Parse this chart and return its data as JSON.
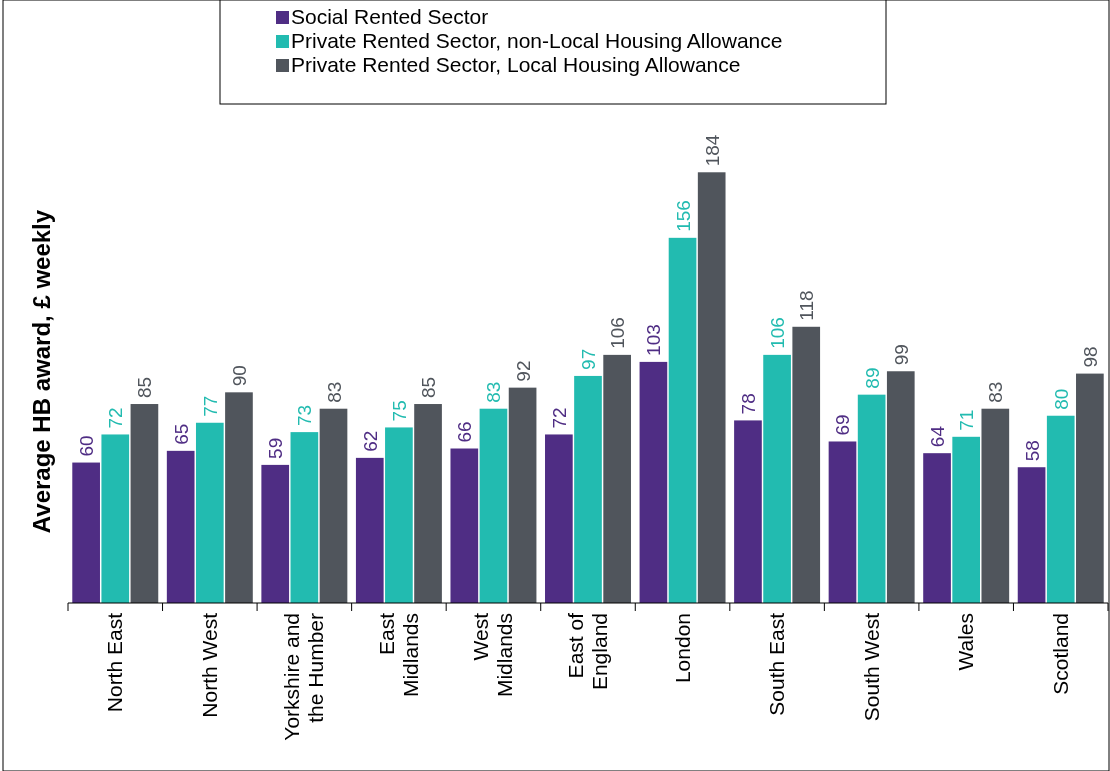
{
  "chart_data": {
    "type": "bar",
    "ylabel": "Average HB award, £ weekly",
    "categories": [
      "North East",
      "North West",
      "Yorkshire and the Humber",
      "East Midlands",
      "West Midlands",
      "East of England",
      "London",
      "South East",
      "South West",
      "Wales",
      "Scotland"
    ],
    "series": [
      {
        "name": "Social Rented Sector",
        "color": "#4f2d84",
        "values": [
          60,
          65,
          59,
          62,
          66,
          72,
          103,
          78,
          69,
          64,
          58
        ]
      },
      {
        "name": "Private Rented Sector, non-Local Housing Allowance",
        "color": "#22bbb0",
        "values": [
          72,
          77,
          73,
          75,
          83,
          97,
          156,
          106,
          89,
          71,
          80
        ]
      },
      {
        "name": "Private Rented Sector, Local Housing Allowance",
        "color": "#50555c",
        "values": [
          85,
          90,
          83,
          85,
          92,
          106,
          184,
          118,
          99,
          83,
          98
        ]
      }
    ],
    "data_labels": true,
    "legend": "top",
    "grid": false
  }
}
